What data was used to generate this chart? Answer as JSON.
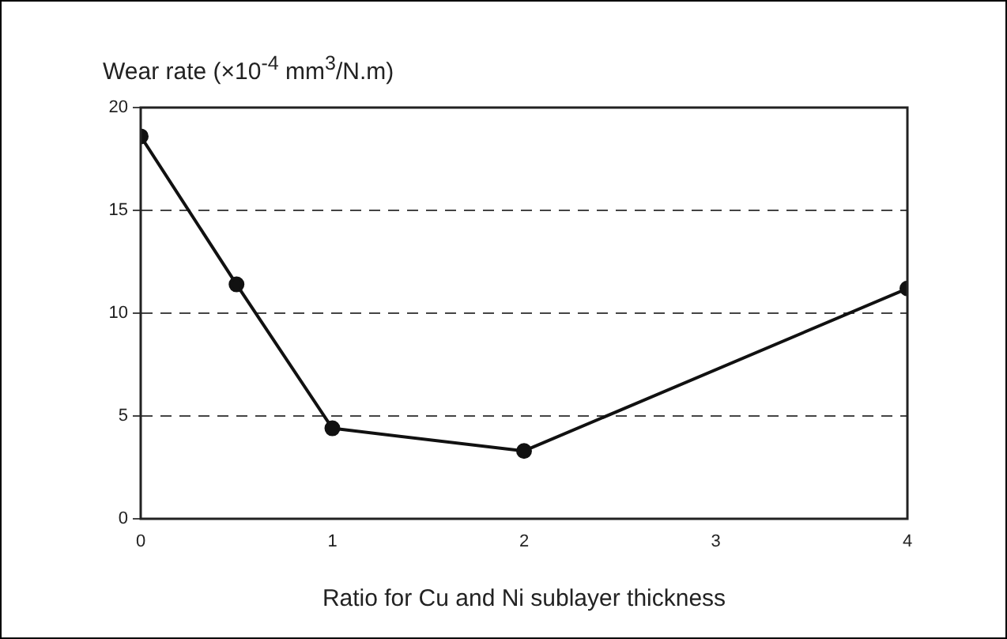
{
  "chart_data": {
    "type": "line",
    "ylabel": "Wear rate (×10$^{-4}$ mm$^{3}$/N.m)",
    "xlabel": "Ratio for Cu and Ni sublayer thickness",
    "x": [
      0,
      0.5,
      1,
      2,
      4
    ],
    "series": [
      {
        "color": "#111111",
        "values": [
          18.6,
          11.4,
          4.4,
          3.3,
          11.2
        ]
      }
    ],
    "xlim": [
      0,
      4
    ],
    "xticks": [
      0,
      1,
      2,
      3,
      4
    ],
    "ylim": [
      0,
      20
    ],
    "yticks": [
      0,
      5,
      10,
      15,
      20
    ],
    "grid": "y",
    "legend": false,
    "marker": "circle",
    "line_style": "solid"
  }
}
